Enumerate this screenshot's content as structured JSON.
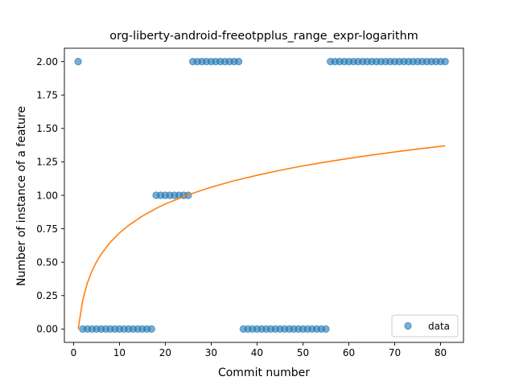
{
  "chart_data": {
    "type": "scatter",
    "title": "org-liberty-android-freeotpplus_range_expr-logarithm",
    "xlabel": "Commit number",
    "ylabel": "Number of instance of a feature",
    "xlim": [
      -2,
      85
    ],
    "ylim": [
      -0.1,
      2.1
    ],
    "xticks": [
      0,
      10,
      20,
      30,
      40,
      50,
      60,
      70,
      80
    ],
    "xtick_labels": [
      "0",
      "10",
      "20",
      "30",
      "40",
      "50",
      "60",
      "70",
      "80"
    ],
    "yticks": [
      0.0,
      0.25,
      0.5,
      0.75,
      1.0,
      1.25,
      1.5,
      1.75,
      2.0
    ],
    "ytick_labels": [
      "0.00",
      "0.25",
      "0.50",
      "0.75",
      "1.00",
      "1.25",
      "1.50",
      "1.75",
      "2.00"
    ],
    "grid": false,
    "legend": {
      "position": "lower-right",
      "entries": [
        "data"
      ]
    },
    "colors": {
      "data": "#1f77b4",
      "fit": "#ff7f0e"
    },
    "series": [
      {
        "name": "data",
        "kind": "scatter",
        "x": [
          1,
          2,
          3,
          4,
          5,
          6,
          7,
          8,
          9,
          10,
          11,
          12,
          13,
          14,
          15,
          16,
          17,
          18,
          19,
          20,
          21,
          22,
          23,
          24,
          25,
          26,
          27,
          28,
          29,
          30,
          31,
          32,
          33,
          34,
          35,
          36,
          37,
          38,
          39,
          40,
          41,
          42,
          43,
          44,
          45,
          46,
          47,
          48,
          49,
          50,
          51,
          52,
          53,
          54,
          55,
          56,
          57,
          58,
          59,
          60,
          61,
          62,
          63,
          64,
          65,
          66,
          67,
          68,
          69,
          70,
          71,
          72,
          73,
          74,
          75,
          76,
          77,
          78,
          79,
          80,
          81
        ],
        "y": [
          2,
          0,
          0,
          0,
          0,
          0,
          0,
          0,
          0,
          0,
          0,
          0,
          0,
          0,
          0,
          0,
          0,
          1,
          1,
          1,
          1,
          1,
          1,
          1,
          1,
          2,
          2,
          2,
          2,
          2,
          2,
          2,
          2,
          2,
          2,
          2,
          0,
          0,
          0,
          0,
          0,
          0,
          0,
          0,
          0,
          0,
          0,
          0,
          0,
          0,
          0,
          0,
          0,
          0,
          0,
          2,
          2,
          2,
          2,
          2,
          2,
          2,
          2,
          2,
          2,
          2,
          2,
          2,
          2,
          2,
          2,
          2,
          2,
          2,
          2,
          2,
          2,
          2,
          2,
          2,
          2
        ]
      },
      {
        "kind": "line",
        "fit": "logarithmic",
        "x": [
          1,
          2,
          3,
          4,
          5,
          6,
          8,
          10,
          12,
          15,
          18,
          20,
          25,
          30,
          35,
          40,
          45,
          50,
          55,
          60,
          65,
          70,
          75,
          81
        ],
        "y": [
          0.0,
          0.216,
          0.343,
          0.433,
          0.502,
          0.559,
          0.649,
          0.718,
          0.775,
          0.845,
          0.902,
          0.935,
          1.004,
          1.061,
          1.109,
          1.15,
          1.187,
          1.22,
          1.249,
          1.276,
          1.301,
          1.324,
          1.346,
          1.37
        ]
      }
    ]
  }
}
